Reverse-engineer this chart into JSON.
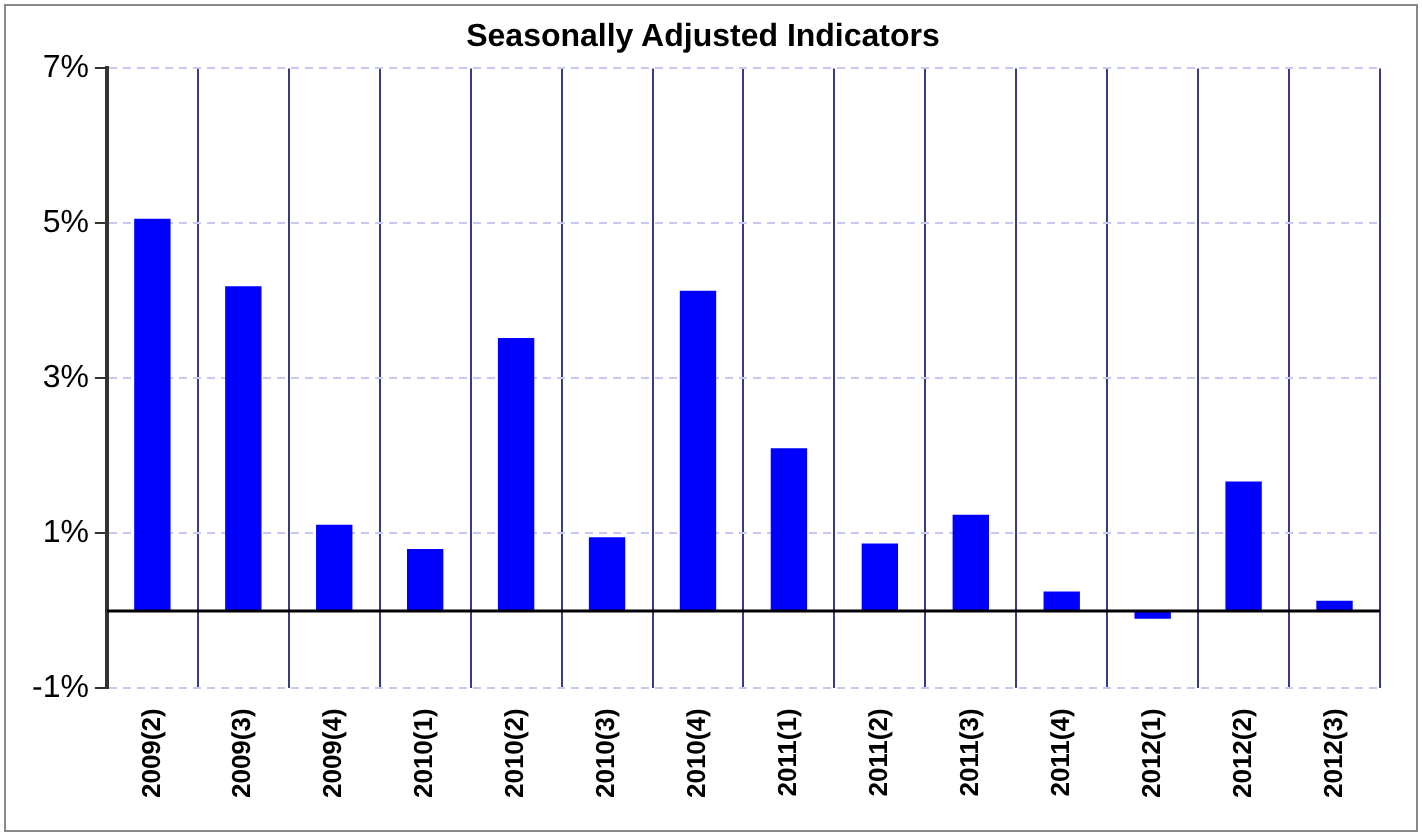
{
  "chart_data": {
    "type": "bar",
    "title": "Seasonally Adjusted Indicators",
    "categories": [
      "2009(2)",
      "2009(3)",
      "2009(4)",
      "2010(1)",
      "2010(2)",
      "2010(3)",
      "2010(4)",
      "2011(1)",
      "2011(2)",
      "2011(3)",
      "2011(4)",
      "2012(1)",
      "2012(2)",
      "2012(3)"
    ],
    "values": [
      5.06,
      4.19,
      1.11,
      0.8,
      3.52,
      0.95,
      4.13,
      2.1,
      0.87,
      1.24,
      0.25,
      -0.1,
      1.67,
      0.13
    ],
    "color": "#0000ff",
    "ylim": [
      -1,
      7
    ],
    "yticks": [
      {
        "value": -1,
        "label": "-1%"
      },
      {
        "value": 1,
        "label": "1%"
      },
      {
        "value": 3,
        "label": "3%"
      },
      {
        "value": 5,
        "label": "5%"
      },
      {
        "value": 7,
        "label": "7%"
      }
    ],
    "grid": true
  }
}
